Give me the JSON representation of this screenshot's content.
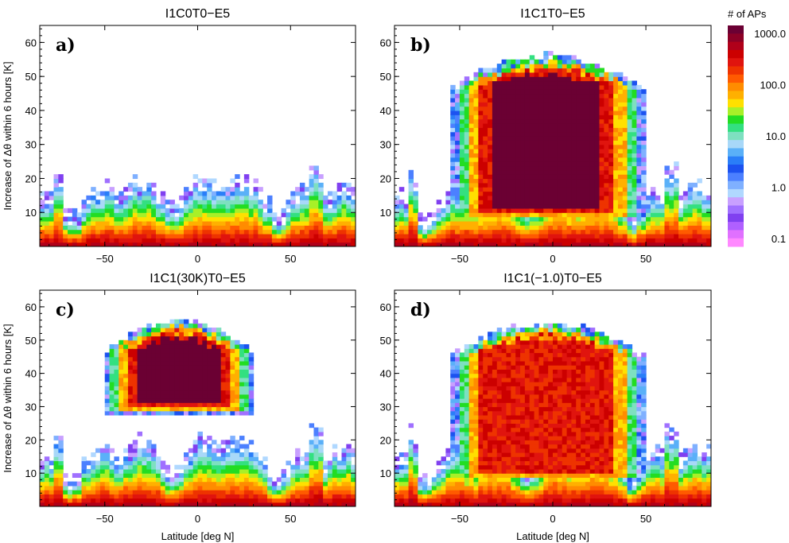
{
  "figure": {
    "colorbar": {
      "title": "# of APs",
      "tick_labels": [
        "1000.0",
        "100.0",
        "10.0",
        "1.0",
        "0.1"
      ],
      "tick_values": [
        1000,
        100,
        10,
        1,
        0.1
      ],
      "scale": "log",
      "colors": [
        "#6b0033",
        "#8c0026",
        "#b0001a",
        "#cc0000",
        "#e0140e",
        "#ee3300",
        "#ff5a00",
        "#ff8c00",
        "#ffb000",
        "#ffe000",
        "#a8f028",
        "#22dd22",
        "#33e080",
        "#7ee0c0",
        "#a8d8f8",
        "#5ab0f8",
        "#2a7ef8",
        "#1c52f0",
        "#4c80ff",
        "#7fb0ff",
        "#b0d8ff",
        "#c8a0ff",
        "#a070ff",
        "#8040f0",
        "#b060ff",
        "#e070ff",
        "#ff88ff"
      ]
    }
  },
  "chart_data": [
    {
      "type": "heatmap",
      "panel_label": "a)",
      "title": "I1C0T0−E5",
      "xlabel": "",
      "ylabel": "Increase of Δθ within 6 hours [K]",
      "xlim": [
        -85,
        85
      ],
      "ylim": [
        0,
        65
      ],
      "x_ticks": [
        -50,
        0,
        50
      ],
      "x_tick_labels": [
        "−50",
        "0",
        "50"
      ],
      "y_ticks": [
        10,
        20,
        30,
        40,
        50,
        60
      ],
      "y_tick_labels": [
        "10",
        "20",
        "30",
        "40",
        "50",
        "60"
      ],
      "features": {
        "base_top": [
          10,
          18,
          14
        ],
        "bulge": null
      }
    },
    {
      "type": "heatmap",
      "panel_label": "b)",
      "title": "I1C1T0−E5",
      "xlabel": "",
      "ylabel": "",
      "xlim": [
        -85,
        85
      ],
      "ylim": [
        0,
        65
      ],
      "x_ticks": [
        -50,
        0,
        50
      ],
      "x_tick_labels": [
        "−50",
        "0",
        "50"
      ],
      "y_ticks": [
        10,
        20,
        30,
        40,
        50,
        60
      ],
      "y_tick_labels": [
        "10",
        "20",
        "30",
        "40",
        "50",
        "60"
      ],
      "features": {
        "base_top": [
          10,
          18,
          14
        ],
        "bulge": {
          "center": -3,
          "half_width_lat": 52,
          "top": 55,
          "bottom": 8,
          "intensity": 1.0
        }
      }
    },
    {
      "type": "heatmap",
      "panel_label": "c)",
      "title": "I1C1(30K)T0−E5",
      "xlabel": "Latitude [deg N]",
      "ylabel": "Increase of Δθ within 6 hours [K]",
      "xlim": [
        -85,
        85
      ],
      "ylim": [
        0,
        65
      ],
      "x_ticks": [
        -50,
        0,
        50
      ],
      "x_tick_labels": [
        "−50",
        "0",
        "50"
      ],
      "y_ticks": [
        10,
        20,
        30,
        40,
        50,
        60
      ],
      "y_tick_labels": [
        "10",
        "20",
        "30",
        "40",
        "50",
        "60"
      ],
      "features": {
        "base_top": [
          10,
          18,
          14
        ],
        "bulge": {
          "center": -10,
          "half_width_lat": 40,
          "top": 55,
          "bottom": 28,
          "intensity": 1.0
        }
      }
    },
    {
      "type": "heatmap",
      "panel_label": "d)",
      "title": "I1C1(−1.0)T0−E5",
      "xlabel": "Latitude [deg N]",
      "ylabel": "",
      "xlim": [
        -85,
        85
      ],
      "ylim": [
        0,
        65
      ],
      "x_ticks": [
        -50,
        0,
        50
      ],
      "x_tick_labels": [
        "−50",
        "0",
        "50"
      ],
      "y_ticks": [
        10,
        20,
        30,
        40,
        50,
        60
      ],
      "y_tick_labels": [
        "10",
        "20",
        "30",
        "40",
        "50",
        "60"
      ],
      "features": {
        "base_top": [
          10,
          18,
          14
        ],
        "bulge": {
          "center": -3,
          "half_width_lat": 52,
          "top": 54,
          "bottom": 8,
          "intensity": 0.6
        }
      }
    }
  ]
}
